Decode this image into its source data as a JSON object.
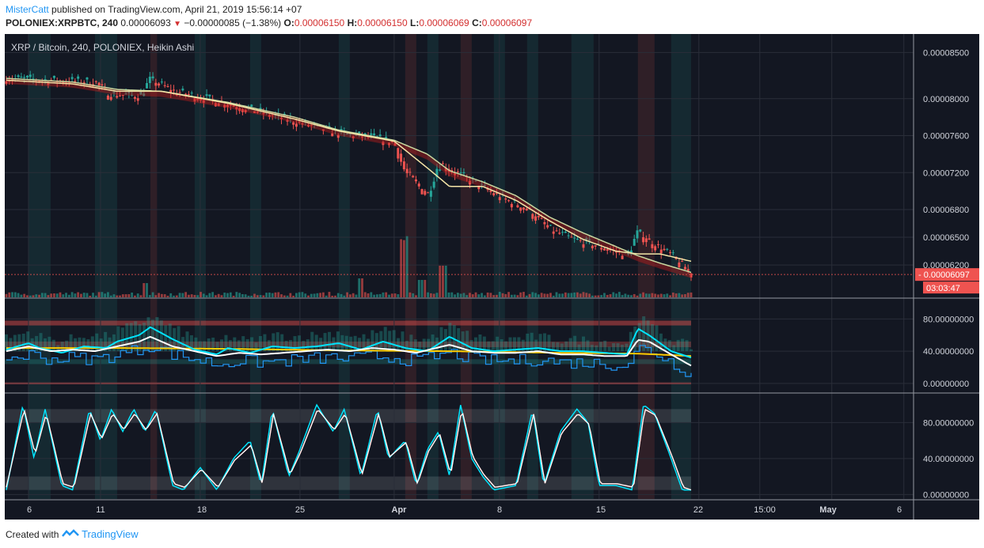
{
  "header": {
    "author": "MisterCatt",
    "published": "published on TradingView.com, April 21, 2019 15:56:14 +07",
    "symbol": "POLONIEX:XRPBTC, 240",
    "last": "0.00006093",
    "change": "−0.00000085 (−1.38%)",
    "o_label": "O:",
    "o": "0.00006150",
    "h_label": "H:",
    "h": "0.00006150",
    "l_label": "L:",
    "l": "0.00006069",
    "c_label": "C:",
    "c": "0.00006097"
  },
  "colors": {
    "background": "#131722",
    "up": "#26a69a",
    "down": "#ef5350",
    "ma_fast": "#f5e6a8",
    "ma_slow": "#c8d8a0",
    "cyan": "#00e5ff",
    "white": "#ffffff",
    "yellow": "#ffcc00",
    "blue": "#2196f3"
  },
  "footer": {
    "created": "Created with",
    "brand": "TradingView"
  },
  "chart_data": [
    {
      "type": "candlestick",
      "title": "XRP / Bitcoin, 240, POLONIEX, Heikin Ashi",
      "x_ticks": [
        "6",
        "11",
        "18",
        "25",
        "Apr",
        "8",
        "15",
        "22",
        "15:00",
        "May",
        "6"
      ],
      "y_ticks": [
        "0.00008500",
        "0.00008000",
        "0.00007600",
        "0.00007200",
        "0.00006800",
        "0.00006500",
        "0.00006200"
      ],
      "ylim": [
        5.85e-05,
        8.7e-05
      ],
      "last_price_label": "0.00006097",
      "countdown_label": "03:03:47",
      "price_path": [
        [
          0,
          8.22e-05
        ],
        [
          4,
          8.2e-05
        ],
        [
          8,
          8.18e-05
        ],
        [
          9,
          8.05e-05
        ],
        [
          12,
          8.03e-05
        ],
        [
          13,
          8.2e-05
        ],
        [
          15,
          8.08e-05
        ],
        [
          18,
          8e-05
        ],
        [
          22,
          7.88e-05
        ],
        [
          26,
          7.75e-05
        ],
        [
          30,
          7.62e-05
        ],
        [
          33,
          7.58e-05
        ],
        [
          35,
          7.52e-05
        ],
        [
          36,
          7.2e-05
        ],
        [
          38,
          6.95e-05
        ],
        [
          39,
          7.3e-05
        ],
        [
          42,
          7.1e-05
        ],
        [
          45,
          6.9e-05
        ],
        [
          47,
          6.8e-05
        ],
        [
          49,
          6.58e-05
        ],
        [
          51,
          6.48e-05
        ],
        [
          54,
          6.38e-05
        ],
        [
          56,
          6.3e-05
        ],
        [
          57,
          6.55e-05
        ],
        [
          58,
          6.45e-05
        ],
        [
          60,
          6.3e-05
        ],
        [
          61,
          6.18e-05
        ],
        [
          61.8,
          6.1e-05
        ]
      ],
      "ma_fast_path": [
        [
          0,
          8.2e-05
        ],
        [
          6,
          8.16e-05
        ],
        [
          10,
          8.08e-05
        ],
        [
          14,
          8.08e-05
        ],
        [
          20,
          7.95e-05
        ],
        [
          26,
          7.78e-05
        ],
        [
          30,
          7.65e-05
        ],
        [
          35,
          7.54e-05
        ],
        [
          38,
          7.25e-05
        ],
        [
          40,
          7.05e-05
        ],
        [
          43,
          7.05e-05
        ],
        [
          46,
          6.9e-05
        ],
        [
          49,
          6.68e-05
        ],
        [
          52,
          6.48e-05
        ],
        [
          55,
          6.35e-05
        ],
        [
          57,
          6.32e-05
        ],
        [
          59,
          6.32e-05
        ],
        [
          61.8,
          6.24e-05
        ]
      ],
      "ma_slow_path": [
        [
          0,
          8.22e-05
        ],
        [
          6,
          8.18e-05
        ],
        [
          10,
          8.1e-05
        ],
        [
          14,
          8.08e-05
        ],
        [
          20,
          7.96e-05
        ],
        [
          26,
          7.8e-05
        ],
        [
          30,
          7.66e-05
        ],
        [
          35,
          7.55e-05
        ],
        [
          38,
          7.4e-05
        ],
        [
          40,
          7.22e-05
        ],
        [
          43,
          7.1e-05
        ],
        [
          46,
          6.95e-05
        ],
        [
          49,
          6.72e-05
        ],
        [
          52,
          6.55e-05
        ],
        [
          55,
          6.4e-05
        ],
        [
          57,
          6.3e-05
        ],
        [
          59,
          6.22e-05
        ],
        [
          61.8,
          6.12e-05
        ]
      ]
    },
    {
      "type": "line",
      "y_ticks": [
        "80.00000000",
        "40.00000000",
        "0.00000000"
      ],
      "ylim": [
        -10,
        105
      ],
      "cyan_path": [
        [
          0,
          42
        ],
        [
          2,
          50
        ],
        [
          3,
          44
        ],
        [
          5,
          38
        ],
        [
          7,
          46
        ],
        [
          9,
          44
        ],
        [
          10,
          52
        ],
        [
          12,
          60
        ],
        [
          13,
          70
        ],
        [
          15,
          55
        ],
        [
          17,
          42
        ],
        [
          19,
          36
        ],
        [
          20,
          44
        ],
        [
          22,
          38
        ],
        [
          24,
          46
        ],
        [
          26,
          44
        ],
        [
          28,
          46
        ],
        [
          30,
          50
        ],
        [
          32,
          42
        ],
        [
          34,
          52
        ],
        [
          36,
          44
        ],
        [
          38,
          40
        ],
        [
          40,
          58
        ],
        [
          42,
          44
        ],
        [
          44,
          40
        ],
        [
          46,
          42
        ],
        [
          48,
          44
        ],
        [
          50,
          40
        ],
        [
          52,
          40
        ],
        [
          54,
          38
        ],
        [
          56,
          36
        ],
        [
          57,
          68
        ],
        [
          58,
          60
        ],
        [
          60,
          40
        ],
        [
          61.8,
          32
        ]
      ],
      "white_path": [
        [
          0,
          40
        ],
        [
          2,
          46
        ],
        [
          4,
          40
        ],
        [
          6,
          42
        ],
        [
          8,
          40
        ],
        [
          10,
          46
        ],
        [
          12,
          52
        ],
        [
          13,
          58
        ],
        [
          15,
          46
        ],
        [
          17,
          40
        ],
        [
          19,
          34
        ],
        [
          21,
          38
        ],
        [
          23,
          36
        ],
        [
          25,
          38
        ],
        [
          27,
          40
        ],
        [
          29,
          42
        ],
        [
          31,
          40
        ],
        [
          33,
          44
        ],
        [
          35,
          42
        ],
        [
          37,
          38
        ],
        [
          40,
          48
        ],
        [
          42,
          40
        ],
        [
          44,
          38
        ],
        [
          46,
          38
        ],
        [
          48,
          40
        ],
        [
          50,
          36
        ],
        [
          52,
          36
        ],
        [
          54,
          34
        ],
        [
          56,
          34
        ],
        [
          57,
          54
        ],
        [
          58,
          52
        ],
        [
          60,
          36
        ],
        [
          61.8,
          22
        ]
      ],
      "yellow_path": [
        [
          0,
          44
        ],
        [
          10,
          44
        ],
        [
          20,
          43
        ],
        [
          30,
          41
        ],
        [
          40,
          40
        ],
        [
          50,
          38
        ],
        [
          57,
          37
        ],
        [
          61.8,
          34
        ]
      ]
    },
    {
      "type": "line",
      "y_ticks": [
        "80.00000000",
        "40.00000000",
        "0.00000000"
      ],
      "ylim": [
        -5,
        112
      ],
      "cyan_path": [
        [
          0,
          5
        ],
        [
          1.5,
          100
        ],
        [
          2.5,
          40
        ],
        [
          3.5,
          95
        ],
        [
          5,
          10
        ],
        [
          6,
          5
        ],
        [
          7.5,
          95
        ],
        [
          8.5,
          60
        ],
        [
          9.5,
          95
        ],
        [
          10.5,
          70
        ],
        [
          11.5,
          95
        ],
        [
          12.5,
          70
        ],
        [
          13.5,
          95
        ],
        [
          15,
          10
        ],
        [
          16,
          5
        ],
        [
          17.5,
          30
        ],
        [
          19,
          5
        ],
        [
          20.5,
          40
        ],
        [
          22,
          60
        ],
        [
          23,
          10
        ],
        [
          24,
          95
        ],
        [
          25.5,
          20
        ],
        [
          26.5,
          50
        ],
        [
          28,
          100
        ],
        [
          29.5,
          70
        ],
        [
          30.5,
          95
        ],
        [
          32,
          20
        ],
        [
          33.5,
          95
        ],
        [
          34.5,
          40
        ],
        [
          36,
          60
        ],
        [
          37,
          10
        ],
        [
          38,
          50
        ],
        [
          39,
          70
        ],
        [
          40,
          20
        ],
        [
          41,
          100
        ],
        [
          42,
          40
        ],
        [
          43,
          20
        ],
        [
          44,
          5
        ],
        [
          46,
          10
        ],
        [
          47.5,
          95
        ],
        [
          48.5,
          10
        ],
        [
          50,
          70
        ],
        [
          51.5,
          95
        ],
        [
          52.5,
          80
        ],
        [
          53.5,
          10
        ],
        [
          55,
          10
        ],
        [
          56.5,
          5
        ],
        [
          57.5,
          100
        ],
        [
          58.5,
          90
        ],
        [
          60,
          40
        ],
        [
          61,
          5
        ],
        [
          61.8,
          5
        ]
      ],
      "white_path": [
        [
          0,
          8
        ],
        [
          1.6,
          95
        ],
        [
          2.6,
          45
        ],
        [
          3.6,
          90
        ],
        [
          5.1,
          12
        ],
        [
          6.1,
          8
        ],
        [
          7.6,
          90
        ],
        [
          8.6,
          62
        ],
        [
          9.6,
          90
        ],
        [
          10.6,
          72
        ],
        [
          11.6,
          90
        ],
        [
          12.6,
          72
        ],
        [
          13.6,
          90
        ],
        [
          15.1,
          12
        ],
        [
          16.1,
          8
        ],
        [
          17.6,
          28
        ],
        [
          19.1,
          8
        ],
        [
          20.6,
          38
        ],
        [
          22.1,
          55
        ],
        [
          23.1,
          12
        ],
        [
          24.1,
          90
        ],
        [
          25.6,
          22
        ],
        [
          26.6,
          48
        ],
        [
          28.1,
          95
        ],
        [
          29.6,
          72
        ],
        [
          30.6,
          90
        ],
        [
          32.1,
          22
        ],
        [
          33.6,
          90
        ],
        [
          34.6,
          42
        ],
        [
          36.1,
          58
        ],
        [
          37.1,
          12
        ],
        [
          38.1,
          48
        ],
        [
          39.1,
          68
        ],
        [
          40.1,
          22
        ],
        [
          41.1,
          95
        ],
        [
          42.1,
          42
        ],
        [
          43.1,
          22
        ],
        [
          44.1,
          8
        ],
        [
          46.1,
          12
        ],
        [
          47.6,
          90
        ],
        [
          48.6,
          12
        ],
        [
          50.1,
          68
        ],
        [
          51.6,
          90
        ],
        [
          52.6,
          78
        ],
        [
          53.6,
          12
        ],
        [
          55.1,
          12
        ],
        [
          56.6,
          8
        ],
        [
          57.6,
          95
        ],
        [
          58.6,
          88
        ],
        [
          60.1,
          42
        ],
        [
          61.1,
          8
        ],
        [
          61.8,
          5
        ]
      ]
    }
  ]
}
